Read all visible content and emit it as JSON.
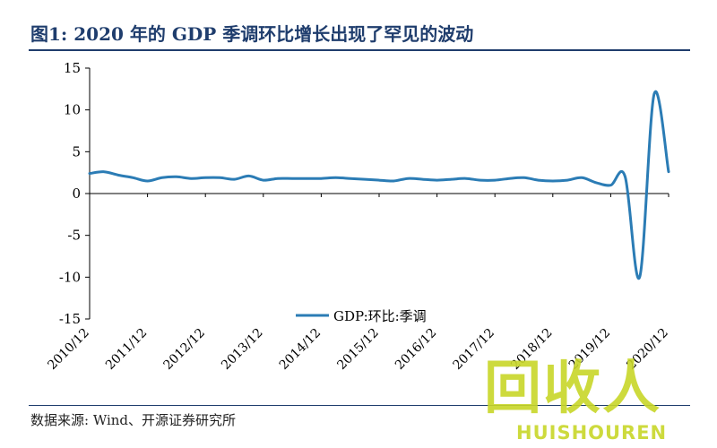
{
  "title": "图1: 2020 年的 GDP 季调环比增长出现了罕见的波动",
  "source": "数据来源: Wind、开源证券研究所",
  "watermark": {
    "logo": "回收人",
    "text": "HUISHOUREN"
  },
  "colors": {
    "line": "#2b7cb5",
    "title": "#1f3d6d",
    "axis": "#000000",
    "watermark": "#c8d628"
  },
  "chart_data": {
    "type": "line",
    "x": [
      "2010/12",
      "2011/03",
      "2011/06",
      "2011/09",
      "2011/12",
      "2012/03",
      "2012/06",
      "2012/09",
      "2012/12",
      "2013/03",
      "2013/06",
      "2013/09",
      "2013/12",
      "2014/03",
      "2014/06",
      "2014/09",
      "2014/12",
      "2015/03",
      "2015/06",
      "2015/09",
      "2015/12",
      "2016/03",
      "2016/06",
      "2016/09",
      "2016/12",
      "2017/03",
      "2017/06",
      "2017/09",
      "2017/12",
      "2018/03",
      "2018/06",
      "2018/09",
      "2018/12",
      "2019/03",
      "2019/06",
      "2019/09",
      "2019/12",
      "2020/03",
      "2020/06",
      "2020/09",
      "2020/12"
    ],
    "series": [
      {
        "name": "GDP:环比:季调",
        "values": [
          2.4,
          2.6,
          2.2,
          1.9,
          1.5,
          1.9,
          2.0,
          1.8,
          1.9,
          1.9,
          1.7,
          2.1,
          1.6,
          1.8,
          1.8,
          1.8,
          1.8,
          1.9,
          1.8,
          1.7,
          1.6,
          1.5,
          1.8,
          1.7,
          1.6,
          1.7,
          1.8,
          1.6,
          1.6,
          1.8,
          1.9,
          1.6,
          1.5,
          1.6,
          1.9,
          1.3,
          1.0,
          2.0,
          -10.0,
          11.9,
          2.6
        ]
      }
    ],
    "xticks": [
      "2010/12",
      "2011/12",
      "2012/12",
      "2013/12",
      "2014/12",
      "2015/12",
      "2016/12",
      "2017/12",
      "2018/12",
      "2019/12",
      "2020/12"
    ],
    "yticks": [
      15,
      10,
      5,
      0,
      -5,
      -10,
      -15
    ],
    "ylim": [
      -15,
      15
    ],
    "legend": {
      "label": "GDP:环比:季调",
      "position": "bottom-right"
    },
    "grid": false
  }
}
